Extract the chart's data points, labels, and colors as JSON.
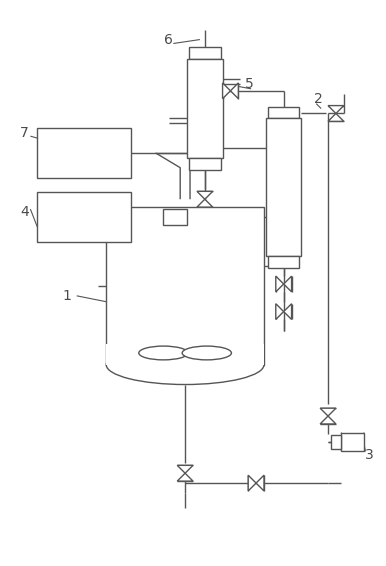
{
  "bg_color": "#ffffff",
  "line_color": "#555555",
  "lw": 1.0,
  "fig_width": 3.86,
  "fig_height": 5.66,
  "dpi": 100
}
